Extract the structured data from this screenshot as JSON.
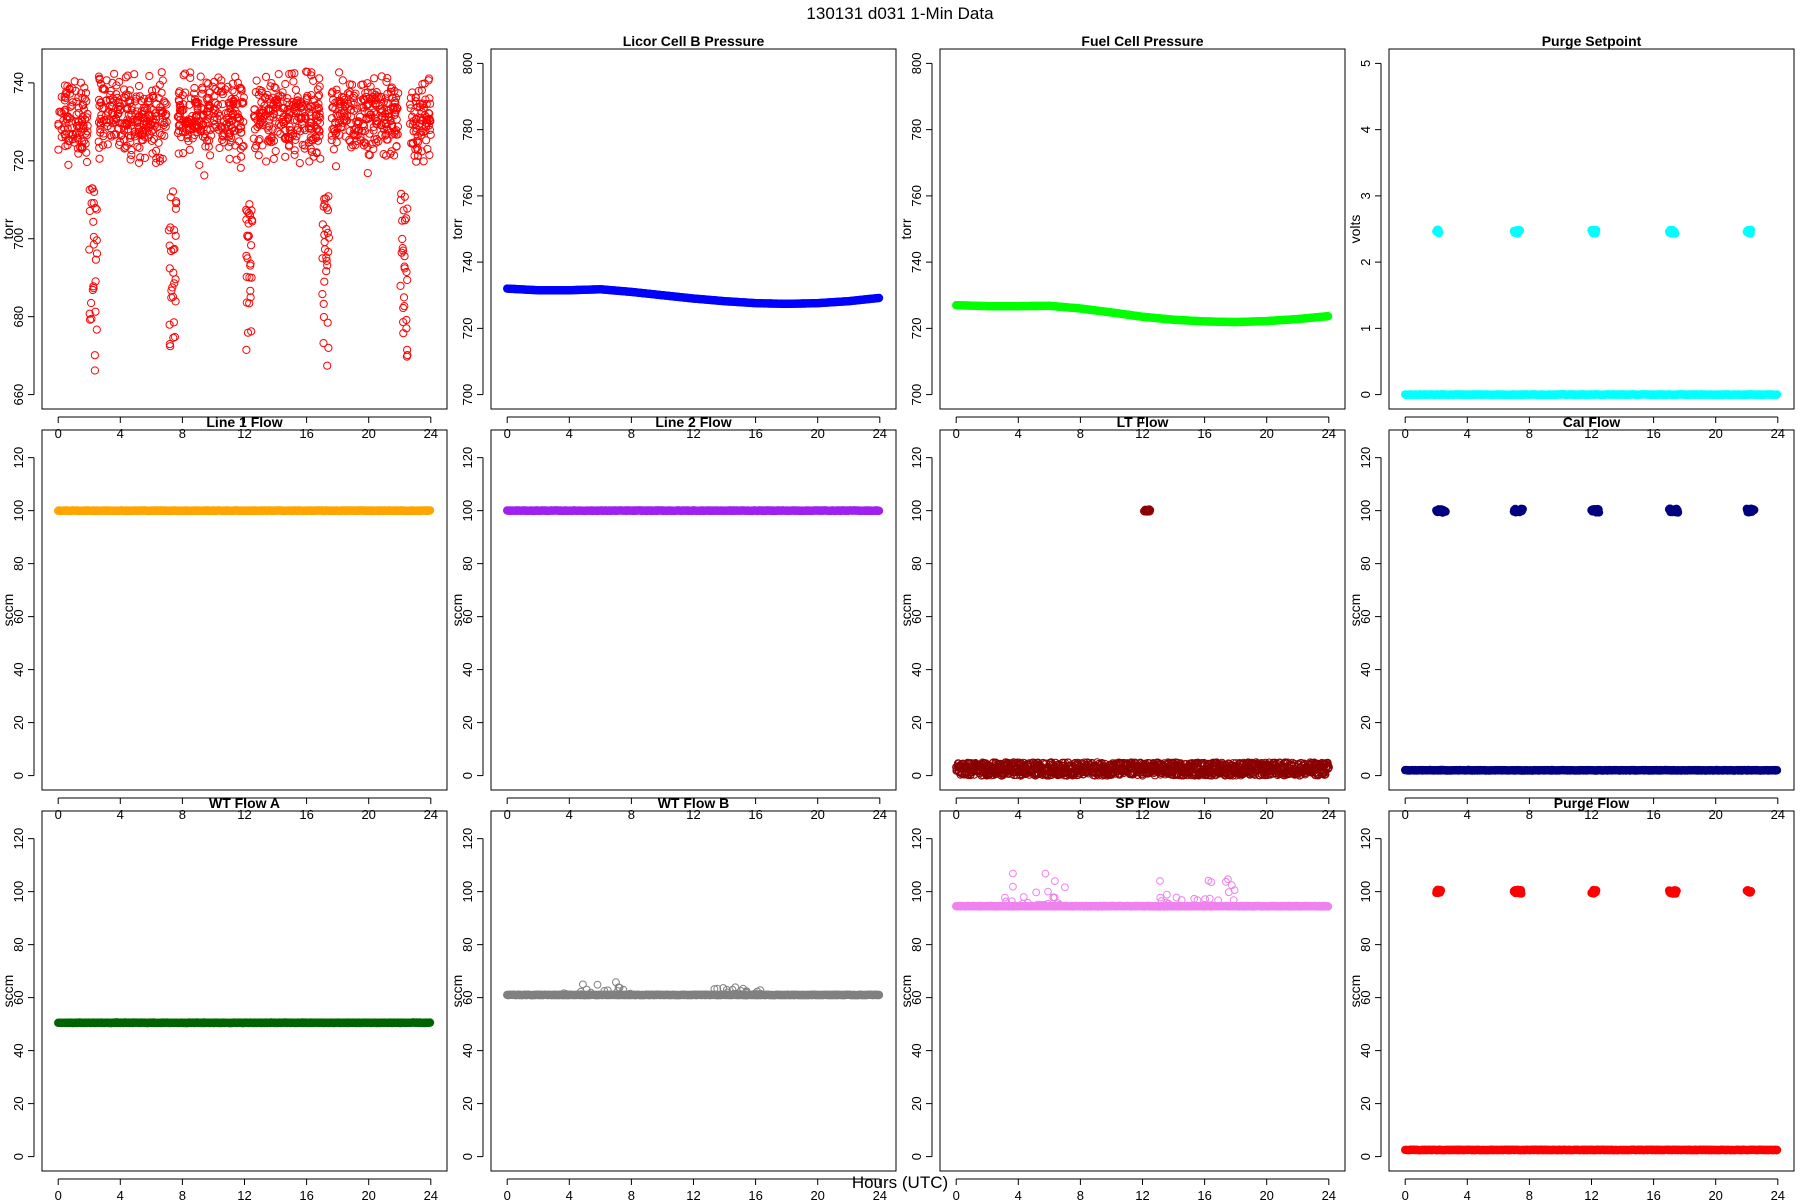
{
  "figure": {
    "title": "130131   d031   1-Min Data",
    "xlabel": "Hours (UTC)"
  },
  "chart_data": [
    {
      "type": "scatter",
      "title": "Fridge Pressure",
      "ylabel": "torr",
      "xlim": [
        0,
        24
      ],
      "ylim": [
        660,
        745
      ],
      "xticks": [
        0,
        4,
        8,
        12,
        16,
        20,
        24
      ],
      "yticks": [
        660,
        680,
        700,
        720,
        740
      ],
      "color": "#ff0000",
      "marker": "open-circle",
      "series": [
        {
          "kind": "noise",
          "ranges": [
            [
              0,
              1.9
            ],
            [
              2.6,
              7.0
            ],
            [
              7.7,
              12.0
            ],
            [
              12.6,
              16.9
            ],
            [
              17.6,
              21.9
            ],
            [
              22.6,
              24
            ]
          ],
          "center": 731,
          "spread": 5,
          "outlier_max": 743,
          "outlier_min": 716
        },
        {
          "kind": "drop",
          "x": [
            2.0,
            2.5
          ],
          "y": [
            665,
            713
          ]
        },
        {
          "kind": "drop",
          "x": [
            7.1,
            7.6
          ],
          "y": [
            664,
            713
          ]
        },
        {
          "kind": "drop",
          "x": [
            12.1,
            12.5
          ],
          "y": [
            663,
            710
          ]
        },
        {
          "kind": "drop",
          "x": [
            17.0,
            17.5
          ],
          "y": [
            662,
            711
          ]
        },
        {
          "kind": "drop",
          "x": [
            22.0,
            22.5
          ],
          "y": [
            662,
            713
          ]
        }
      ]
    },
    {
      "type": "scatter",
      "title": "Licor Cell B Pressure",
      "ylabel": "torr",
      "xlim": [
        0,
        24
      ],
      "ylim": [
        700,
        800
      ],
      "xticks": [
        0,
        4,
        8,
        12,
        16,
        20,
        24
      ],
      "yticks": [
        700,
        720,
        740,
        760,
        780,
        800
      ],
      "color": "#0000ff",
      "marker": "filled",
      "series": [
        {
          "kind": "curve",
          "x": [
            0,
            2,
            4,
            6,
            8,
            10,
            12,
            14,
            16,
            18,
            20,
            22,
            24
          ],
          "y": [
            732,
            731.5,
            731.5,
            731.8,
            731,
            730,
            729,
            728.2,
            727.6,
            727.4,
            727.6,
            728.2,
            729.2
          ]
        }
      ]
    },
    {
      "type": "scatter",
      "title": "Fuel Cell Pressure",
      "ylabel": "torr",
      "xlim": [
        0,
        24
      ],
      "ylim": [
        700,
        800
      ],
      "xticks": [
        0,
        4,
        8,
        12,
        16,
        20,
        24
      ],
      "yticks": [
        700,
        720,
        740,
        760,
        780,
        800
      ],
      "color": "#00ff00",
      "marker": "filled",
      "series": [
        {
          "kind": "curve",
          "x": [
            0,
            2,
            4,
            6,
            8,
            10,
            12,
            14,
            16,
            18,
            20,
            22,
            24
          ],
          "y": [
            727,
            726.7,
            726.7,
            726.8,
            726,
            724.8,
            723.5,
            722.6,
            722.1,
            721.9,
            722.2,
            722.8,
            723.7
          ]
        }
      ]
    },
    {
      "type": "scatter",
      "title": "Purge Setpoint",
      "ylabel": "volts",
      "xlim": [
        0,
        24
      ],
      "ylim": [
        0,
        5
      ],
      "xticks": [
        0,
        4,
        8,
        12,
        16,
        20,
        24
      ],
      "yticks": [
        0,
        1,
        2,
        3,
        4,
        5
      ],
      "color": "#00ffff",
      "marker": "filled",
      "series": [
        {
          "kind": "flat",
          "x": [
            0,
            24
          ],
          "y": 0
        },
        {
          "kind": "cluster",
          "x": [
            2.0,
            2.2
          ],
          "y": 2.46
        },
        {
          "kind": "cluster",
          "x": [
            7.0,
            7.4
          ],
          "y": 2.46
        },
        {
          "kind": "cluster",
          "x": [
            12.0,
            12.3
          ],
          "y": 2.46
        },
        {
          "kind": "cluster",
          "x": [
            17.0,
            17.4
          ],
          "y": 2.46
        },
        {
          "kind": "cluster",
          "x": [
            22.0,
            22.3
          ],
          "y": 2.46
        }
      ]
    },
    {
      "type": "scatter",
      "title": "Line 1 Flow",
      "ylabel": "sccm",
      "xlim": [
        0,
        24
      ],
      "ylim": [
        0,
        125
      ],
      "xticks": [
        0,
        4,
        8,
        12,
        16,
        20,
        24
      ],
      "yticks": [
        0,
        20,
        40,
        60,
        80,
        100,
        120
      ],
      "color": "#ffa500",
      "marker": "filled",
      "series": [
        {
          "kind": "flat",
          "x": [
            0,
            24
          ],
          "y": 100
        }
      ]
    },
    {
      "type": "scatter",
      "title": "Line 2 Flow",
      "ylabel": "sccm",
      "xlim": [
        0,
        24
      ],
      "ylim": [
        0,
        125
      ],
      "xticks": [
        0,
        4,
        8,
        12,
        16,
        20,
        24
      ],
      "yticks": [
        0,
        20,
        40,
        60,
        80,
        100,
        120
      ],
      "color": "#a020f0",
      "marker": "filled",
      "series": [
        {
          "kind": "flat",
          "x": [
            0,
            24
          ],
          "y": 100
        }
      ]
    },
    {
      "type": "scatter",
      "title": "LT Flow",
      "ylabel": "sccm",
      "xlim": [
        0,
        24
      ],
      "ylim": [
        0,
        125
      ],
      "xticks": [
        0,
        4,
        8,
        12,
        16,
        20,
        24
      ],
      "yticks": [
        0,
        20,
        40,
        60,
        80,
        100,
        120
      ],
      "color": "#8b0000",
      "marker": "open-circle",
      "series": [
        {
          "kind": "band",
          "x": [
            0,
            24
          ],
          "y": [
            0,
            5
          ]
        },
        {
          "kind": "cluster",
          "x": [
            12.1,
            12.5
          ],
          "y": 100
        }
      ]
    },
    {
      "type": "scatter",
      "title": "Cal Flow",
      "ylabel": "sccm",
      "xlim": [
        0,
        24
      ],
      "ylim": [
        0,
        125
      ],
      "xticks": [
        0,
        4,
        8,
        12,
        16,
        20,
        24
      ],
      "yticks": [
        0,
        20,
        40,
        60,
        80,
        100,
        120
      ],
      "color": "#000080",
      "marker": "filled",
      "series": [
        {
          "kind": "flat",
          "x": [
            0,
            24
          ],
          "y": 2
        },
        {
          "kind": "cluster",
          "x": [
            2.0,
            2.6
          ],
          "y": 100
        },
        {
          "kind": "cluster",
          "x": [
            7.0,
            7.6
          ],
          "y": 100
        },
        {
          "kind": "cluster",
          "x": [
            12.0,
            12.5
          ],
          "y": 100
        },
        {
          "kind": "cluster",
          "x": [
            17.0,
            17.6
          ],
          "y": 100
        },
        {
          "kind": "cluster",
          "x": [
            22.0,
            22.5
          ],
          "y": 100
        }
      ]
    },
    {
      "type": "scatter",
      "title": "WT Flow A",
      "ylabel": "sccm",
      "xlim": [
        0,
        24
      ],
      "ylim": [
        0,
        125
      ],
      "xticks": [
        0,
        4,
        8,
        12,
        16,
        20,
        24
      ],
      "yticks": [
        0,
        20,
        40,
        60,
        80,
        100,
        120
      ],
      "color": "#006400",
      "marker": "filled",
      "series": [
        {
          "kind": "flat",
          "x": [
            0,
            24
          ],
          "y": 50.5
        }
      ]
    },
    {
      "type": "scatter",
      "title": "WT Flow B",
      "ylabel": "sccm",
      "xlim": [
        0,
        24
      ],
      "ylim": [
        0,
        125
      ],
      "xticks": [
        0,
        4,
        8,
        12,
        16,
        20,
        24
      ],
      "yticks": [
        0,
        20,
        40,
        60,
        80,
        100,
        120
      ],
      "color": "#808080",
      "marker": "filled",
      "series": [
        {
          "kind": "flat",
          "x": [
            0,
            24
          ],
          "y": 61
        },
        {
          "kind": "outliers",
          "x": [
            3.0,
            8.0
          ],
          "y": [
            61,
            67
          ]
        },
        {
          "kind": "outliers",
          "x": [
            13.0,
            16.5
          ],
          "y": [
            61,
            64
          ]
        }
      ]
    },
    {
      "type": "scatter",
      "title": "SP Flow",
      "ylabel": "sccm",
      "xlim": [
        0,
        24
      ],
      "ylim": [
        0,
        125
      ],
      "xticks": [
        0,
        4,
        8,
        12,
        16,
        20,
        24
      ],
      "yticks": [
        0,
        20,
        40,
        60,
        80,
        100,
        120
      ],
      "color": "#ee82ee",
      "marker": "filled",
      "series": [
        {
          "kind": "flat",
          "x": [
            0,
            24
          ],
          "y": 94.5
        },
        {
          "kind": "outliers",
          "x": [
            3.0,
            7.5
          ],
          "y": [
            95,
            107
          ]
        },
        {
          "kind": "outliers",
          "x": [
            13.0,
            18.0
          ],
          "y": [
            95,
            105
          ]
        }
      ]
    },
    {
      "type": "scatter",
      "title": "Purge Flow",
      "ylabel": "sccm",
      "xlim": [
        0,
        24
      ],
      "ylim": [
        0,
        125
      ],
      "xticks": [
        0,
        4,
        8,
        12,
        16,
        20,
        24
      ],
      "yticks": [
        0,
        20,
        40,
        60,
        80,
        100,
        120
      ],
      "color": "#ff0000",
      "marker": "filled",
      "series": [
        {
          "kind": "flat",
          "x": [
            0,
            24
          ],
          "y": 2.5
        },
        {
          "kind": "cluster",
          "x": [
            2.0,
            2.3
          ],
          "y": 100
        },
        {
          "kind": "cluster",
          "x": [
            7.0,
            7.5
          ],
          "y": 100
        },
        {
          "kind": "cluster",
          "x": [
            12.0,
            12.3
          ],
          "y": 100
        },
        {
          "kind": "cluster",
          "x": [
            17.0,
            17.5
          ],
          "y": 100
        },
        {
          "kind": "cluster",
          "x": [
            22.0,
            22.3
          ],
          "y": 100
        }
      ]
    }
  ]
}
